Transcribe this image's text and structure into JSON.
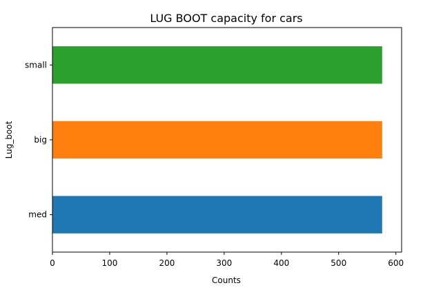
{
  "chart_data": {
    "type": "bar",
    "orientation": "horizontal",
    "title": "LUG BOOT capacity for cars",
    "xlabel": "Counts",
    "ylabel": "Lug_boot",
    "categories": [
      "med",
      "big",
      "small"
    ],
    "values": [
      576,
      576,
      576
    ],
    "colors": [
      "#1f77b4",
      "#ff7f0e",
      "#2ca02c"
    ],
    "xlim": [
      0,
      610
    ],
    "xticks": [
      0,
      100,
      200,
      300,
      400,
      500,
      600
    ],
    "grid": false,
    "legend": "none"
  }
}
